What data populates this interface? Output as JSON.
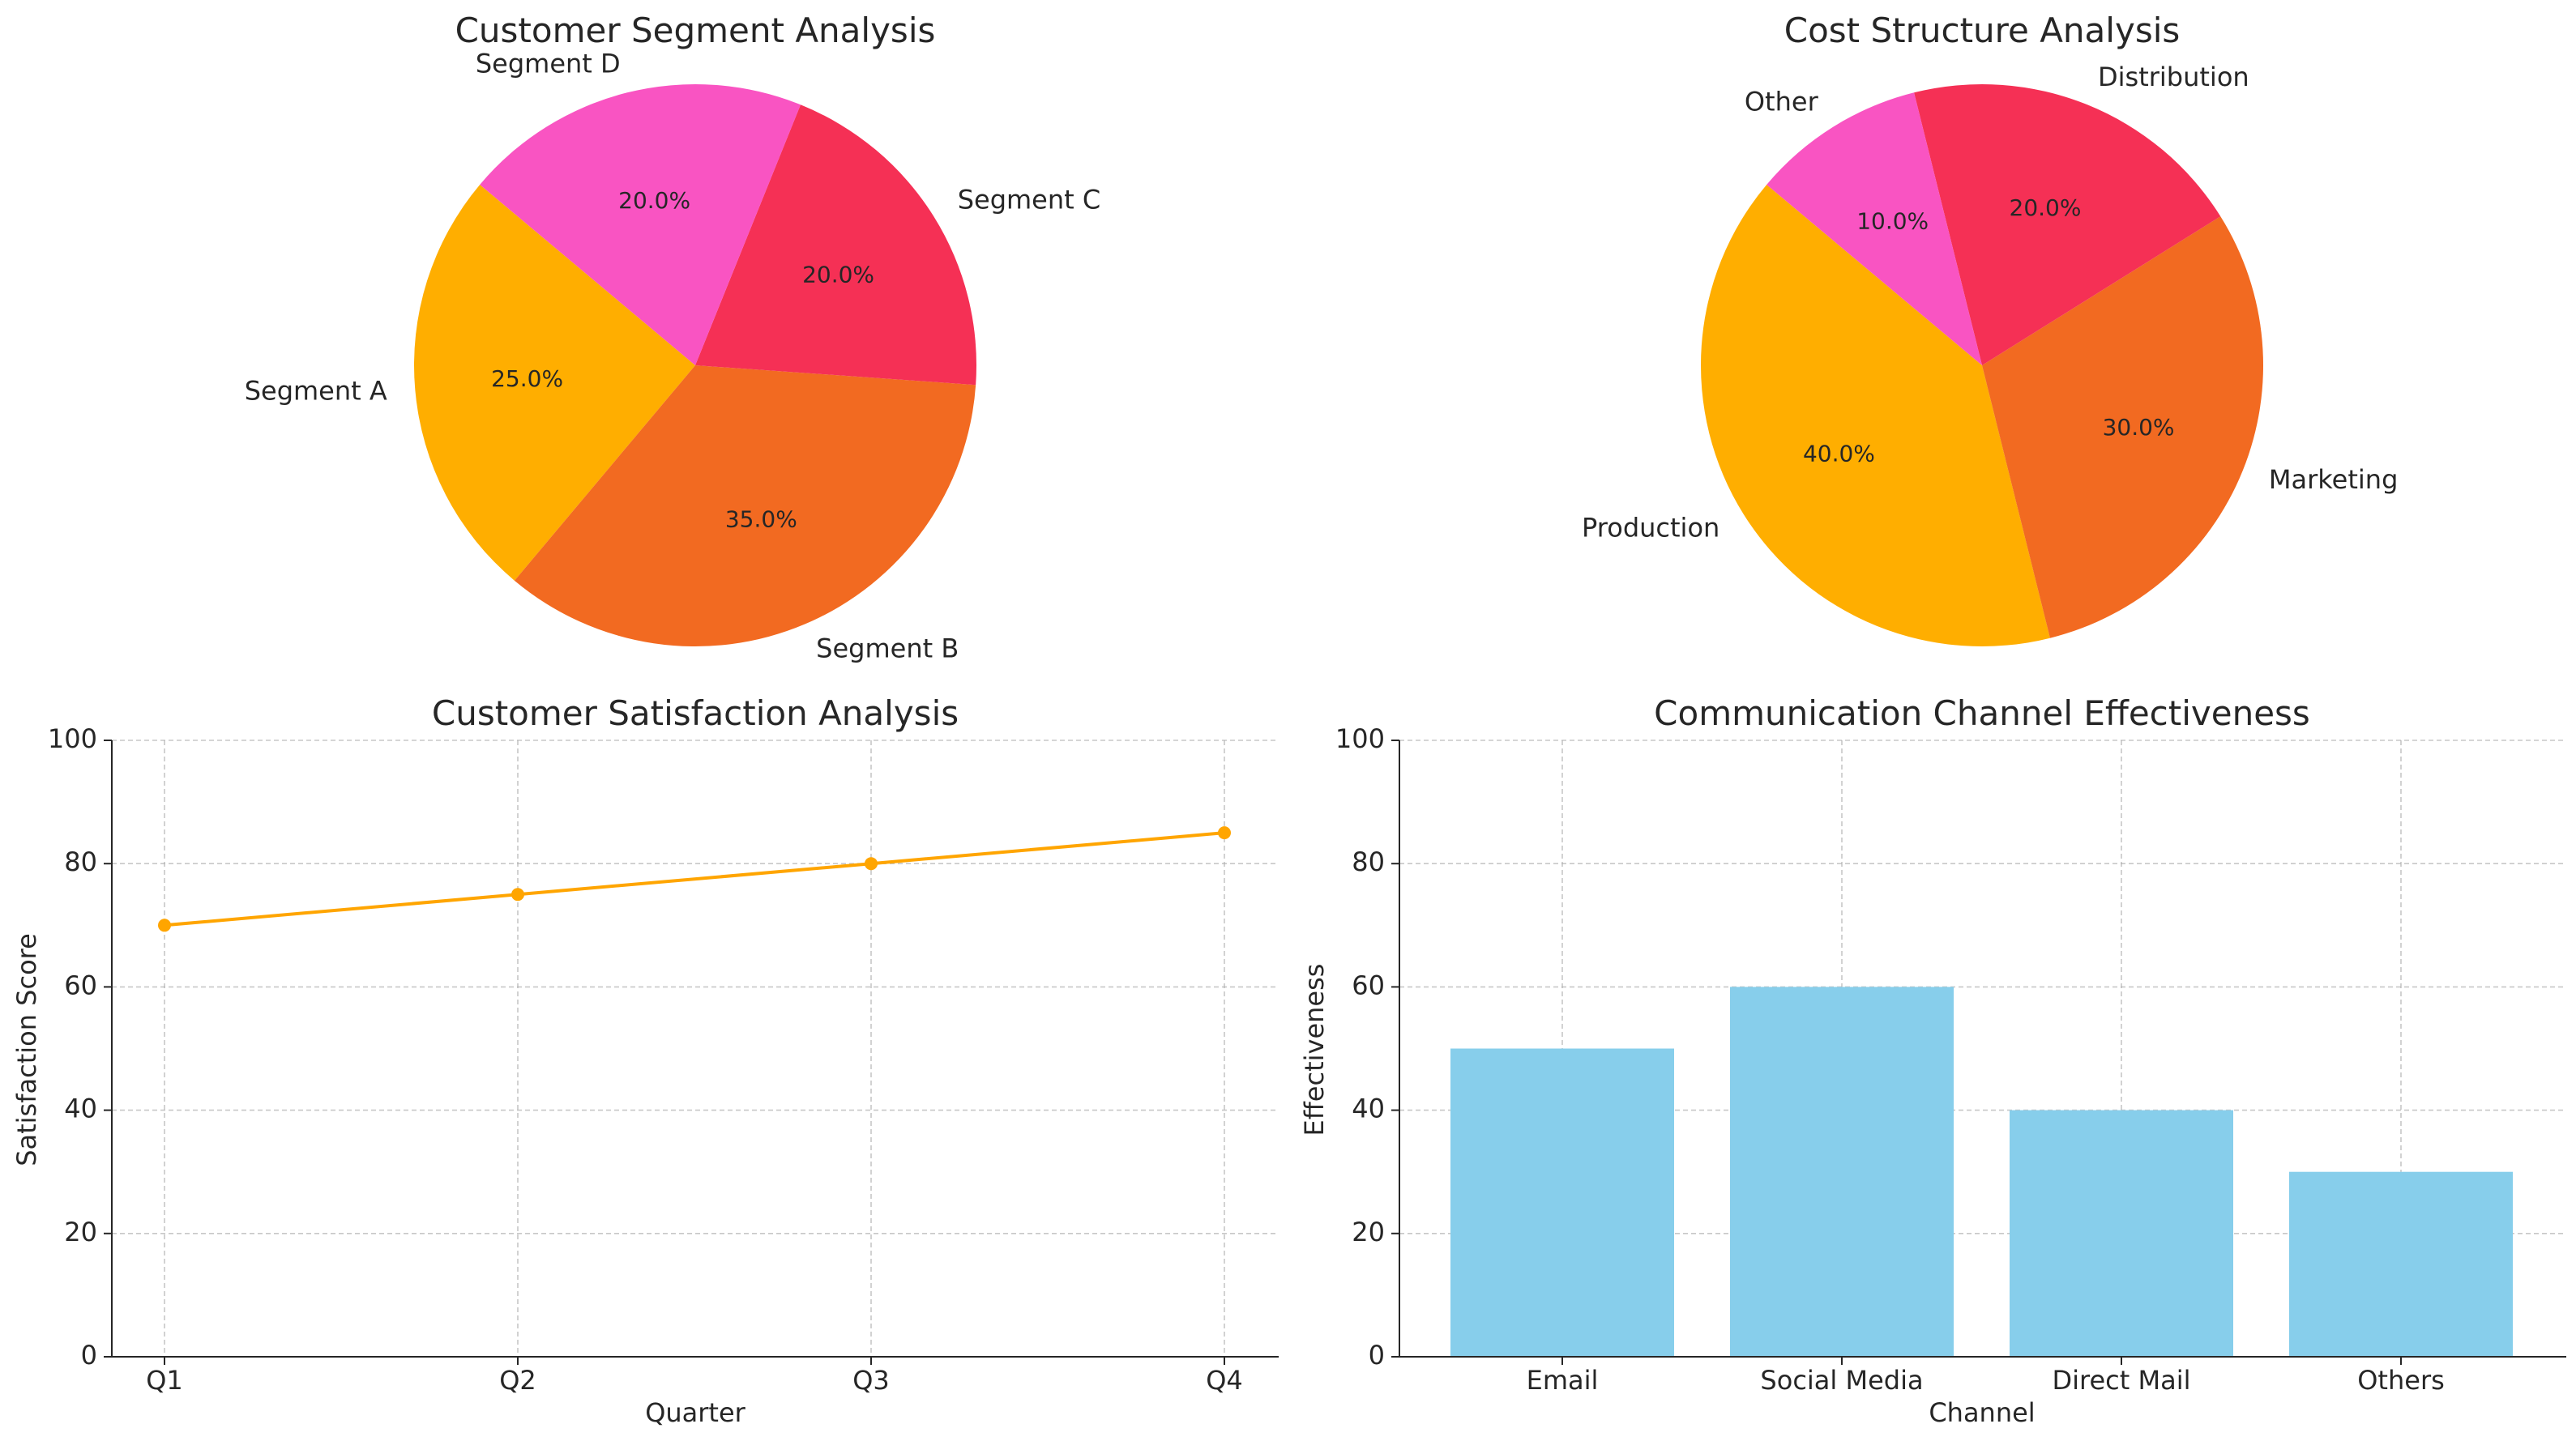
{
  "colors": {
    "pie": [
      "#FFAE00",
      "#F26A21",
      "#F53055",
      "#F954C2"
    ],
    "line": "#FFA500",
    "bar": "#87CEEB",
    "text": "#262626"
  },
  "chart_data": [
    {
      "type": "pie",
      "title": "Customer Segment Analysis",
      "labels": [
        "Segment A",
        "Segment B",
        "Segment C",
        "Segment D"
      ],
      "values": [
        25,
        35,
        20,
        20
      ],
      "pct_labels": [
        "25.0%",
        "35.0%",
        "20.0%",
        "20.0%"
      ],
      "start_angle_deg": 140
    },
    {
      "type": "pie",
      "title": "Cost Structure Analysis",
      "labels": [
        "Production",
        "Marketing",
        "Distribution",
        "Other"
      ],
      "values": [
        40,
        30,
        20,
        10
      ],
      "pct_labels": [
        "40.0%",
        "30.0%",
        "20.0%",
        "10.0%"
      ],
      "start_angle_deg": 140
    },
    {
      "type": "line",
      "title": "Customer Satisfaction Analysis",
      "categories": [
        "Q1",
        "Q2",
        "Q3",
        "Q4"
      ],
      "series": [
        {
          "values": [
            70,
            75,
            80,
            85
          ]
        }
      ],
      "xlabel": "Quarter",
      "ylabel": "Satisfaction Score",
      "ylim": [
        0,
        100
      ],
      "yticks": [
        "0",
        "20",
        "40",
        "60",
        "80",
        "100"
      ],
      "grid": true
    },
    {
      "type": "bar",
      "title": "Communication Channel Effectiveness",
      "categories": [
        "Email",
        "Social Media",
        "Direct Mail",
        "Others"
      ],
      "values": [
        50,
        60,
        40,
        30
      ],
      "xlabel": "Channel",
      "ylabel": "Effectiveness",
      "ylim": [
        0,
        100
      ],
      "yticks": [
        "0",
        "20",
        "40",
        "60",
        "80",
        "100"
      ],
      "grid": true
    }
  ]
}
